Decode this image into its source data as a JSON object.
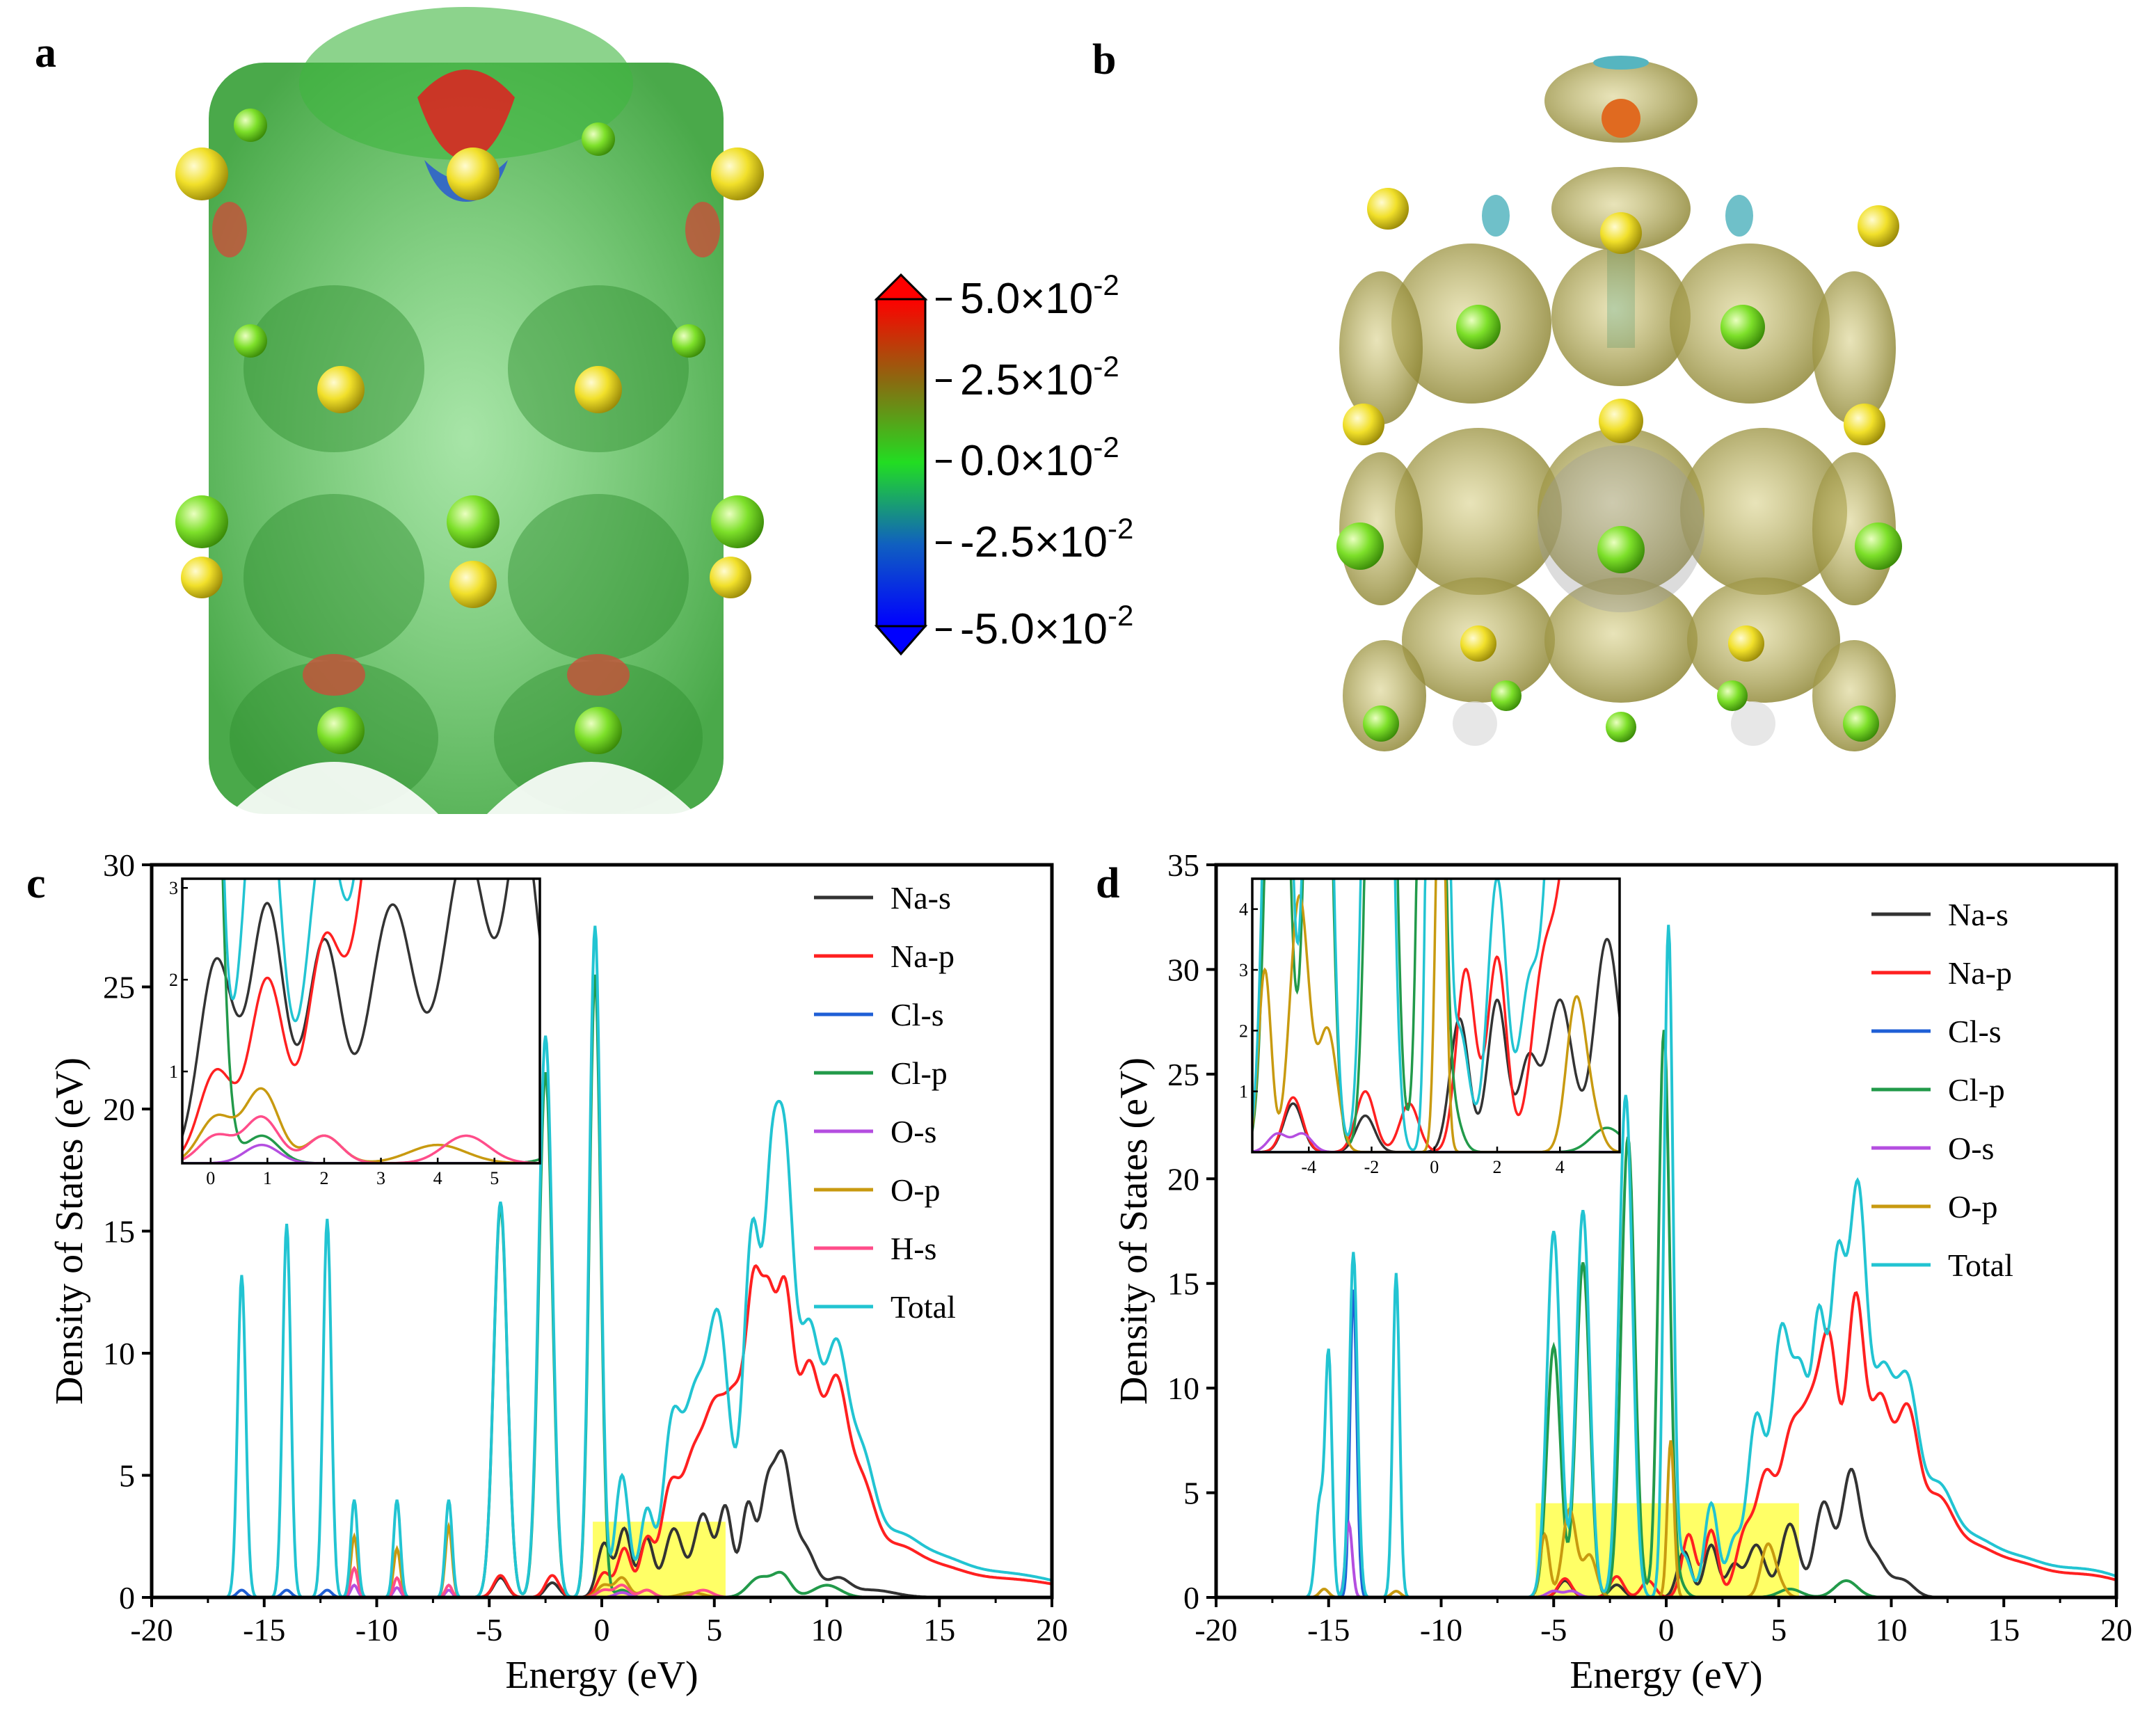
{
  "panels": {
    "a": {
      "label": "a"
    },
    "b": {
      "label": "b"
    },
    "c": {
      "label": "c"
    },
    "d": {
      "label": "d"
    }
  },
  "colorbar": {
    "labels": [
      {
        "mant": "5.0×10",
        "exp": "-2"
      },
      {
        "mant": "2.5×10",
        "exp": "-2"
      },
      {
        "mant": "0.0×10",
        "exp": "-2"
      },
      {
        "mant": "-2.5×10",
        "exp": "-2"
      },
      {
        "mant": "-5.0×10",
        "exp": "-2"
      }
    ],
    "colors": [
      "#ff0000",
      "#8a6a10",
      "#22dd22",
      "#1060c0",
      "#0000ff"
    ]
  },
  "molecules": {
    "colors": {
      "na": "#f1e02a",
      "cl": "#7de02a",
      "iso_a": "#3fb63f",
      "iso_b": "#b3ab4a",
      "iso_b_neg": "#56b5c0",
      "o_red": "#e02020"
    }
  },
  "chart_data": [
    {
      "type": "line",
      "panel": "c",
      "xlabel": "Energy (eV)",
      "ylabel": "Density of States (eV)",
      "xlim": [
        -20,
        20
      ],
      "ylim": [
        0,
        30
      ],
      "xticks": [
        -20,
        -15,
        -10,
        -5,
        0,
        5,
        10,
        15,
        20
      ],
      "yticks": [
        0,
        5,
        10,
        15,
        20,
        25,
        30
      ],
      "highlight": {
        "x": [
          -0.4,
          5.5
        ],
        "y": [
          0,
          3.1
        ],
        "color": "#ffff33"
      },
      "series": [
        {
          "name": "Na-s",
          "color": "#333333",
          "peaks": [
            [
              -4.5,
              0.8,
              0.3
            ],
            [
              -2.2,
              0.6,
              0.3
            ],
            [
              0.1,
              2.2,
              0.3
            ],
            [
              1,
              2.8,
              0.3
            ],
            [
              2,
              2.4,
              0.3
            ],
            [
              3.2,
              2.8,
              0.4
            ],
            [
              4.5,
              3.4,
              0.4
            ],
            [
              5.5,
              3.6,
              0.3
            ],
            [
              6.5,
              3.8,
              0.3
            ],
            [
              7.3,
              3.5,
              0.3
            ],
            [
              8,
              5.5,
              0.4
            ],
            [
              9,
              2,
              0.5
            ],
            [
              10.5,
              0.7,
              0.5
            ],
            [
              12,
              0.3,
              1
            ]
          ]
        },
        {
          "name": "Na-p",
          "color": "#ff2020",
          "peaks": [
            [
              -4.5,
              0.9,
              0.3
            ],
            [
              -2.2,
              0.9,
              0.3
            ],
            [
              0.1,
              1,
              0.3
            ],
            [
              1,
              2,
              0.3
            ],
            [
              2,
              2.3,
              0.3
            ],
            [
              3,
              4,
              0.4
            ],
            [
              4,
              5,
              0.5
            ],
            [
              5,
              6.5,
              0.5
            ],
            [
              6,
              7.2,
              0.5
            ],
            [
              6.8,
              10.4,
              0.35
            ],
            [
              7.4,
              8,
              0.3
            ],
            [
              8.1,
              11.8,
              0.4
            ],
            [
              9.2,
              9,
              0.5
            ],
            [
              10.4,
              7.8,
              0.5
            ],
            [
              11.5,
              4,
              0.6
            ],
            [
              13,
              1.8,
              1
            ],
            [
              15,
              1,
              1.2
            ],
            [
              17.5,
              0.6,
              1.5
            ],
            [
              20,
              0.4,
              1.5
            ]
          ]
        },
        {
          "name": "Cl-s",
          "color": "#1f5fd6",
          "peaks": [
            [
              -16,
              0.3,
              0.2
            ],
            [
              -14,
              0.3,
              0.2
            ],
            [
              -12.2,
              0.3,
              0.2
            ]
          ]
        },
        {
          "name": "Cl-p",
          "color": "#229a4a",
          "peaks": [
            [
              -4.5,
              16,
              0.3
            ],
            [
              -2.5,
              21.5,
              0.3
            ],
            [
              -0.3,
              25.5,
              0.25
            ],
            [
              0.9,
              0.3,
              0.3
            ],
            [
              7,
              0.8,
              0.5
            ],
            [
              8,
              0.9,
              0.4
            ],
            [
              10,
              0.5,
              0.6
            ]
          ]
        },
        {
          "name": "O-s",
          "color": "#b44ee0",
          "peaks": [
            [
              -11,
              0.5,
              0.15
            ],
            [
              -9.1,
              0.4,
              0.15
            ],
            [
              -6.8,
              0.3,
              0.15
            ],
            [
              0.9,
              0.2,
              0.3
            ]
          ]
        },
        {
          "name": "O-p",
          "color": "#c89a10",
          "peaks": [
            [
              -11,
              2.5,
              0.15
            ],
            [
              -9.1,
              2,
              0.15
            ],
            [
              -6.8,
              2.9,
              0.15
            ],
            [
              0.1,
              0.5,
              0.3
            ],
            [
              0.9,
              0.8,
              0.3
            ],
            [
              2,
              0.3,
              0.3
            ],
            [
              4,
              0.2,
              0.5
            ]
          ]
        },
        {
          "name": "H-s",
          "color": "#ff4d8a",
          "peaks": [
            [
              -11,
              1.2,
              0.15
            ],
            [
              -9.1,
              0.8,
              0.15
            ],
            [
              -6.8,
              0.5,
              0.15
            ],
            [
              0.1,
              0.3,
              0.3
            ],
            [
              0.9,
              0.5,
              0.3
            ],
            [
              2,
              0.3,
              0.3
            ],
            [
              4.5,
              0.3,
              0.4
            ]
          ]
        },
        {
          "name": "Total",
          "color": "#22c4d2",
          "peaks": [
            [
              -16,
              13.2,
              0.18
            ],
            [
              -14,
              15.3,
              0.18
            ],
            [
              -12.2,
              15.5,
              0.18
            ],
            [
              -11,
              4,
              0.15
            ],
            [
              -9.1,
              4,
              0.15
            ],
            [
              -6.8,
              4,
              0.15
            ],
            [
              -4.5,
              16.2,
              0.3
            ],
            [
              -2.5,
              23,
              0.3
            ],
            [
              -0.3,
              27.5,
              0.25
            ],
            [
              0.9,
              5,
              0.3
            ],
            [
              2,
              3.5,
              0.3
            ],
            [
              3.1,
              6.5,
              0.4
            ],
            [
              4.1,
              7.5,
              0.5
            ],
            [
              5.2,
              11,
              0.5
            ],
            [
              6.7,
              15,
              0.4
            ],
            [
              7.5,
              11,
              0.3
            ],
            [
              8.1,
              17.3,
              0.4
            ],
            [
              9.2,
              10.5,
              0.5
            ],
            [
              10.4,
              9,
              0.5
            ],
            [
              11.5,
              5,
              0.6
            ],
            [
              13,
              2.2,
              1
            ],
            [
              15,
              1.3,
              1.2
            ],
            [
              17.5,
              0.8,
              1.5
            ],
            [
              20,
              0.5,
              1.5
            ]
          ]
        }
      ],
      "inset": {
        "xlim": [
          -0.5,
          5.8
        ],
        "ylim": [
          0,
          3.1
        ],
        "xticks": [
          0,
          1,
          2,
          3,
          4,
          5
        ],
        "yticks": [
          1,
          2,
          3
        ]
      }
    },
    {
      "type": "line",
      "panel": "d",
      "xlabel": "Energy (eV)",
      "ylabel": "Density of States (eV)",
      "xlim": [
        -20,
        20
      ],
      "ylim": [
        0,
        35
      ],
      "xticks": [
        -20,
        -15,
        -10,
        -5,
        0,
        5,
        10,
        15,
        20
      ],
      "yticks": [
        0,
        5,
        10,
        15,
        20,
        25,
        30,
        35
      ],
      "highlight": {
        "x": [
          -5.8,
          5.9
        ],
        "y": [
          0,
          4.5
        ],
        "color": "#ffff33"
      },
      "series": [
        {
          "name": "Na-s",
          "color": "#333333",
          "peaks": [
            [
              -4.5,
              0.8,
              0.3
            ],
            [
              -2.2,
              0.6,
              0.3
            ],
            [
              0.8,
              2.2,
              0.3
            ],
            [
              2,
              2.5,
              0.3
            ],
            [
              3,
              1.5,
              0.3
            ],
            [
              4,
              2.5,
              0.4
            ],
            [
              5.5,
              3.5,
              0.4
            ],
            [
              7,
              4.5,
              0.4
            ],
            [
              8.2,
              5.8,
              0.4
            ],
            [
              9.2,
              2,
              0.5
            ],
            [
              10.5,
              0.8,
              0.5
            ]
          ]
        },
        {
          "name": "Na-p",
          "color": "#ff2020",
          "peaks": [
            [
              -4.5,
              0.9,
              0.3
            ],
            [
              -2.2,
              1,
              0.3
            ],
            [
              -0.8,
              0.8,
              0.3
            ],
            [
              1,
              3,
              0.3
            ],
            [
              2,
              3.2,
              0.3
            ],
            [
              3.5,
              3,
              0.4
            ],
            [
              4.4,
              5.2,
              0.4
            ],
            [
              5.5,
              7,
              0.5
            ],
            [
              6.5,
              7.8,
              0.5
            ],
            [
              7.3,
              10,
              0.4
            ],
            [
              8.4,
              13.5,
              0.4
            ],
            [
              9.5,
              9,
              0.5
            ],
            [
              10.7,
              8,
              0.5
            ],
            [
              12,
              4,
              0.7
            ],
            [
              13.5,
              2,
              1
            ],
            [
              15.5,
              1.3,
              1.2
            ],
            [
              18,
              0.8,
              1.5
            ],
            [
              20,
              0.5,
              1.5
            ]
          ]
        },
        {
          "name": "Cl-s",
          "color": "#1f5fd6",
          "peaks": [
            [
              -13.9,
              14.7,
              0.15
            ]
          ]
        },
        {
          "name": "Cl-p",
          "color": "#229a4a",
          "peaks": [
            [
              -5,
              12,
              0.3
            ],
            [
              -3.7,
              16,
              0.3
            ],
            [
              -1.7,
              22,
              0.3
            ],
            [
              -0.1,
              27,
              0.25
            ],
            [
              0.5,
              0.8,
              0.3
            ],
            [
              5.5,
              0.4,
              0.5
            ],
            [
              8,
              0.8,
              0.5
            ]
          ]
        },
        {
          "name": "O-s",
          "color": "#b44ee0",
          "peaks": [
            [
              -14.1,
              3.5,
              0.15
            ],
            [
              -5,
              0.3,
              0.3
            ],
            [
              -4.2,
              0.3,
              0.3
            ]
          ]
        },
        {
          "name": "O-p",
          "color": "#c89a10",
          "peaks": [
            [
              -15.2,
              0.4,
              0.2
            ],
            [
              -12,
              0.3,
              0.2
            ],
            [
              -5.4,
              3,
              0.2
            ],
            [
              -4.3,
              4.2,
              0.3
            ],
            [
              -3.4,
              2,
              0.3
            ],
            [
              0.2,
              7.5,
              0.15
            ],
            [
              4.5,
              2.4,
              0.3
            ],
            [
              5,
              0.6,
              0.3
            ]
          ]
        },
        {
          "name": "Total",
          "color": "#22c4d2",
          "peaks": [
            [
              -15.4,
              4.5,
              0.18
            ],
            [
              -15,
              11.5,
              0.15
            ],
            [
              -13.9,
              16.5,
              0.18
            ],
            [
              -12,
              15.5,
              0.15
            ],
            [
              -5,
              17.5,
              0.3
            ],
            [
              -3.7,
              18.5,
              0.3
            ],
            [
              -1.8,
              24,
              0.3
            ],
            [
              0.1,
              32,
              0.2
            ],
            [
              0.8,
              2,
              0.3
            ],
            [
              2,
              4.5,
              0.3
            ],
            [
              3,
              2.5,
              0.3
            ],
            [
              4,
              8.5,
              0.4
            ],
            [
              5.1,
              12,
              0.4
            ],
            [
              6,
              10,
              0.4
            ],
            [
              6.8,
              11.5,
              0.3
            ],
            [
              7.6,
              15,
              0.35
            ],
            [
              8.5,
              18.5,
              0.4
            ],
            [
              9.6,
              10,
              0.5
            ],
            [
              10.7,
              9,
              0.5
            ],
            [
              12,
              4.5,
              0.7
            ],
            [
              13.5,
              2.3,
              1
            ],
            [
              15.5,
              1.5,
              1.2
            ],
            [
              18,
              1,
              1.5
            ],
            [
              20,
              0.6,
              1.5
            ]
          ]
        }
      ],
      "inset": {
        "xlim": [
          -5.8,
          5.9
        ],
        "ylim": [
          0,
          4.5
        ],
        "xticks": [
          -4,
          -2,
          0,
          2,
          4
        ],
        "yticks": [
          1,
          2,
          3,
          4
        ]
      }
    }
  ]
}
